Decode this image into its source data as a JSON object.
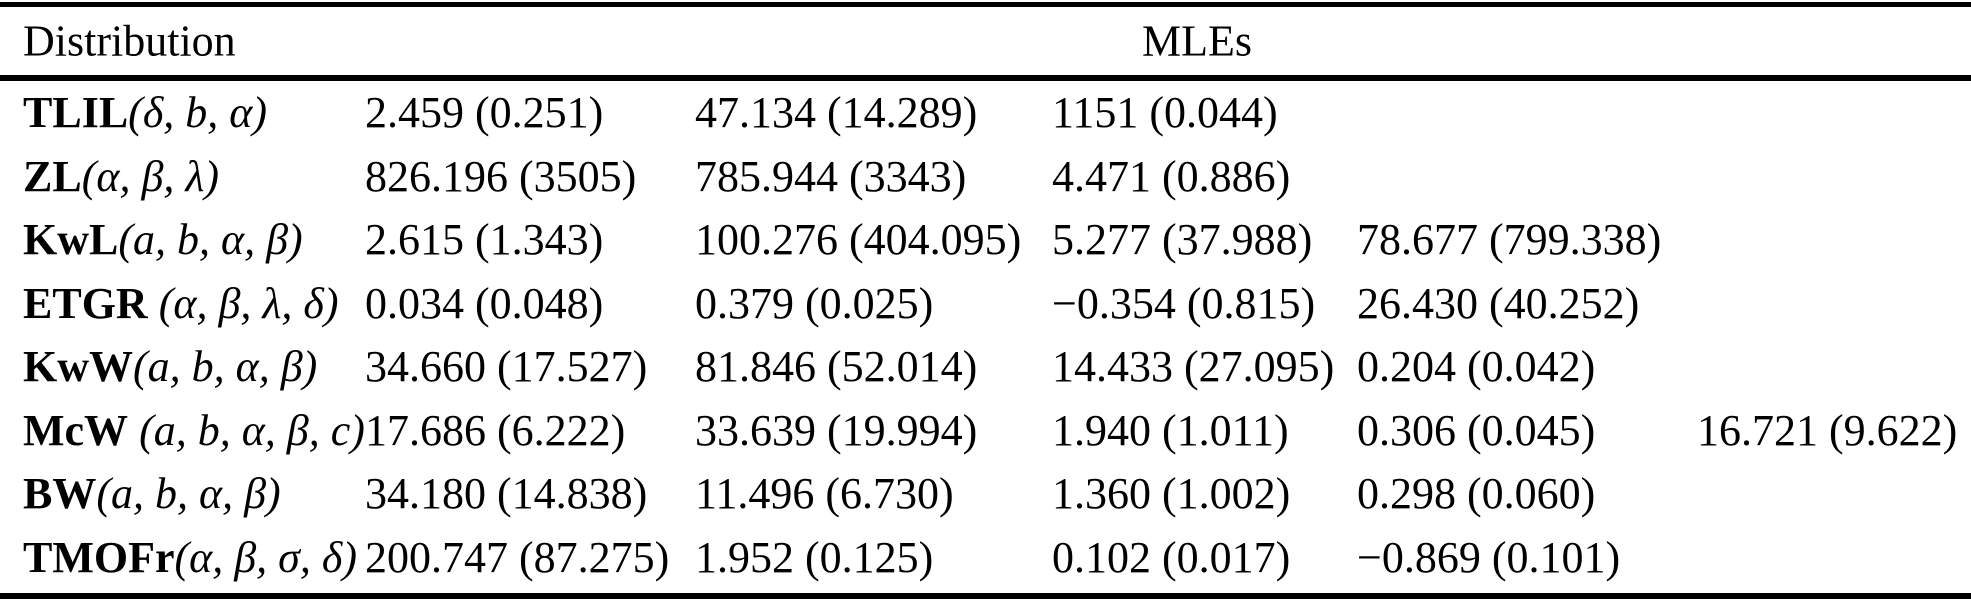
{
  "table": {
    "header": {
      "distribution": "Distribution",
      "mles": "MLEs"
    },
    "rows": [
      {
        "name": "TLIL",
        "params": "(δ, b, α)",
        "cells": [
          "2.459 (0.251)",
          "47.134 (14.289)",
          "1151 (0.044)",
          "",
          ""
        ]
      },
      {
        "name": "ZL",
        "params": "(α, β, λ)",
        "cells": [
          "826.196 (3505)",
          "785.944 (3343)",
          "4.471 (0.886)",
          "",
          ""
        ]
      },
      {
        "name": "KwL",
        "params": "(a, b, α, β)",
        "cells": [
          "2.615 (1.343)",
          "100.276 (404.095)",
          "5.277 (37.988)",
          "78.677 (799.338)",
          ""
        ]
      },
      {
        "name": "ETGR",
        "params": " (α, β, λ, δ)",
        "cells": [
          "0.034 (0.048)",
          "0.379 (0.025)",
          "−0.354 (0.815)",
          "26.430 (40.252)",
          ""
        ]
      },
      {
        "name": "KwW",
        "params": "(a, b, α, β)",
        "cells": [
          "34.660 (17.527)",
          "81.846 (52.014)",
          "14.433 (27.095)",
          "0.204 (0.042)",
          ""
        ]
      },
      {
        "name": "McW",
        "params": " (a, b, α, β, c)",
        "cells": [
          "17.686 (6.222)",
          "33.639 (19.994)",
          "1.940 (1.011)",
          "0.306 (0.045)",
          "16.721 (9.622)"
        ]
      },
      {
        "name": "BW",
        "params": "(a, b, α, β)",
        "cells": [
          "34.180 (14.838)",
          "11.496 (6.730)",
          "1.360 (1.002)",
          "0.298 (0.060)",
          ""
        ]
      },
      {
        "name": "TMOFr",
        "params": "(α, β, σ, δ)",
        "cells": [
          "200.747 (87.275)",
          "1.952 (0.125)",
          "0.102 (0.017)",
          "−0.869 (0.101)",
          ""
        ]
      }
    ]
  }
}
